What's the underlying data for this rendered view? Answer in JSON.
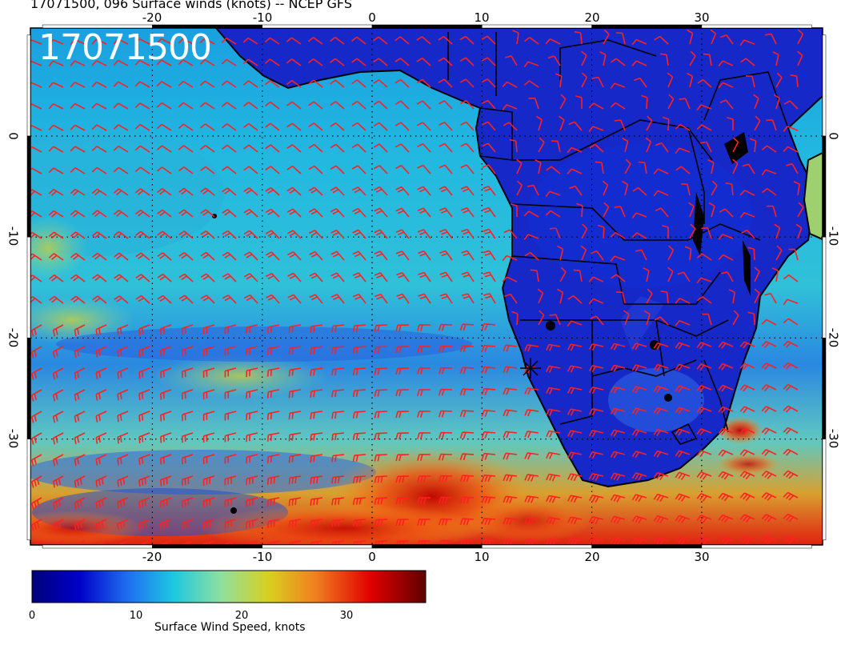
{
  "header": {
    "title": "17071500, 096 Surface winds (knots) -- NCEP GFS",
    "date_stamp": "17071500"
  },
  "map": {
    "projection": "cylindrical equidistant",
    "lon_range": [
      -31,
      41
    ],
    "lat_range": [
      -40,
      9
    ],
    "gridlines": "dotted",
    "lon_ticks": [
      "-20",
      "-10",
      "0",
      "10",
      "20",
      "30"
    ],
    "lat_ticks": [
      "0",
      "-10",
      "-20",
      "-30"
    ],
    "wind_barb_color": "#ff2020",
    "coastline_color": "#000000"
  },
  "colorbar": {
    "label": "Surface Wind Speed, knots",
    "ticks": [
      "0",
      "10",
      "20",
      "30"
    ],
    "range": [
      0,
      38
    ],
    "colors": [
      "#00007a",
      "#0000c8",
      "#1e6cf0",
      "#1ec8e0",
      "#8ee0a0",
      "#d8d020",
      "#f08020",
      "#e00000",
      "#600000"
    ]
  }
}
